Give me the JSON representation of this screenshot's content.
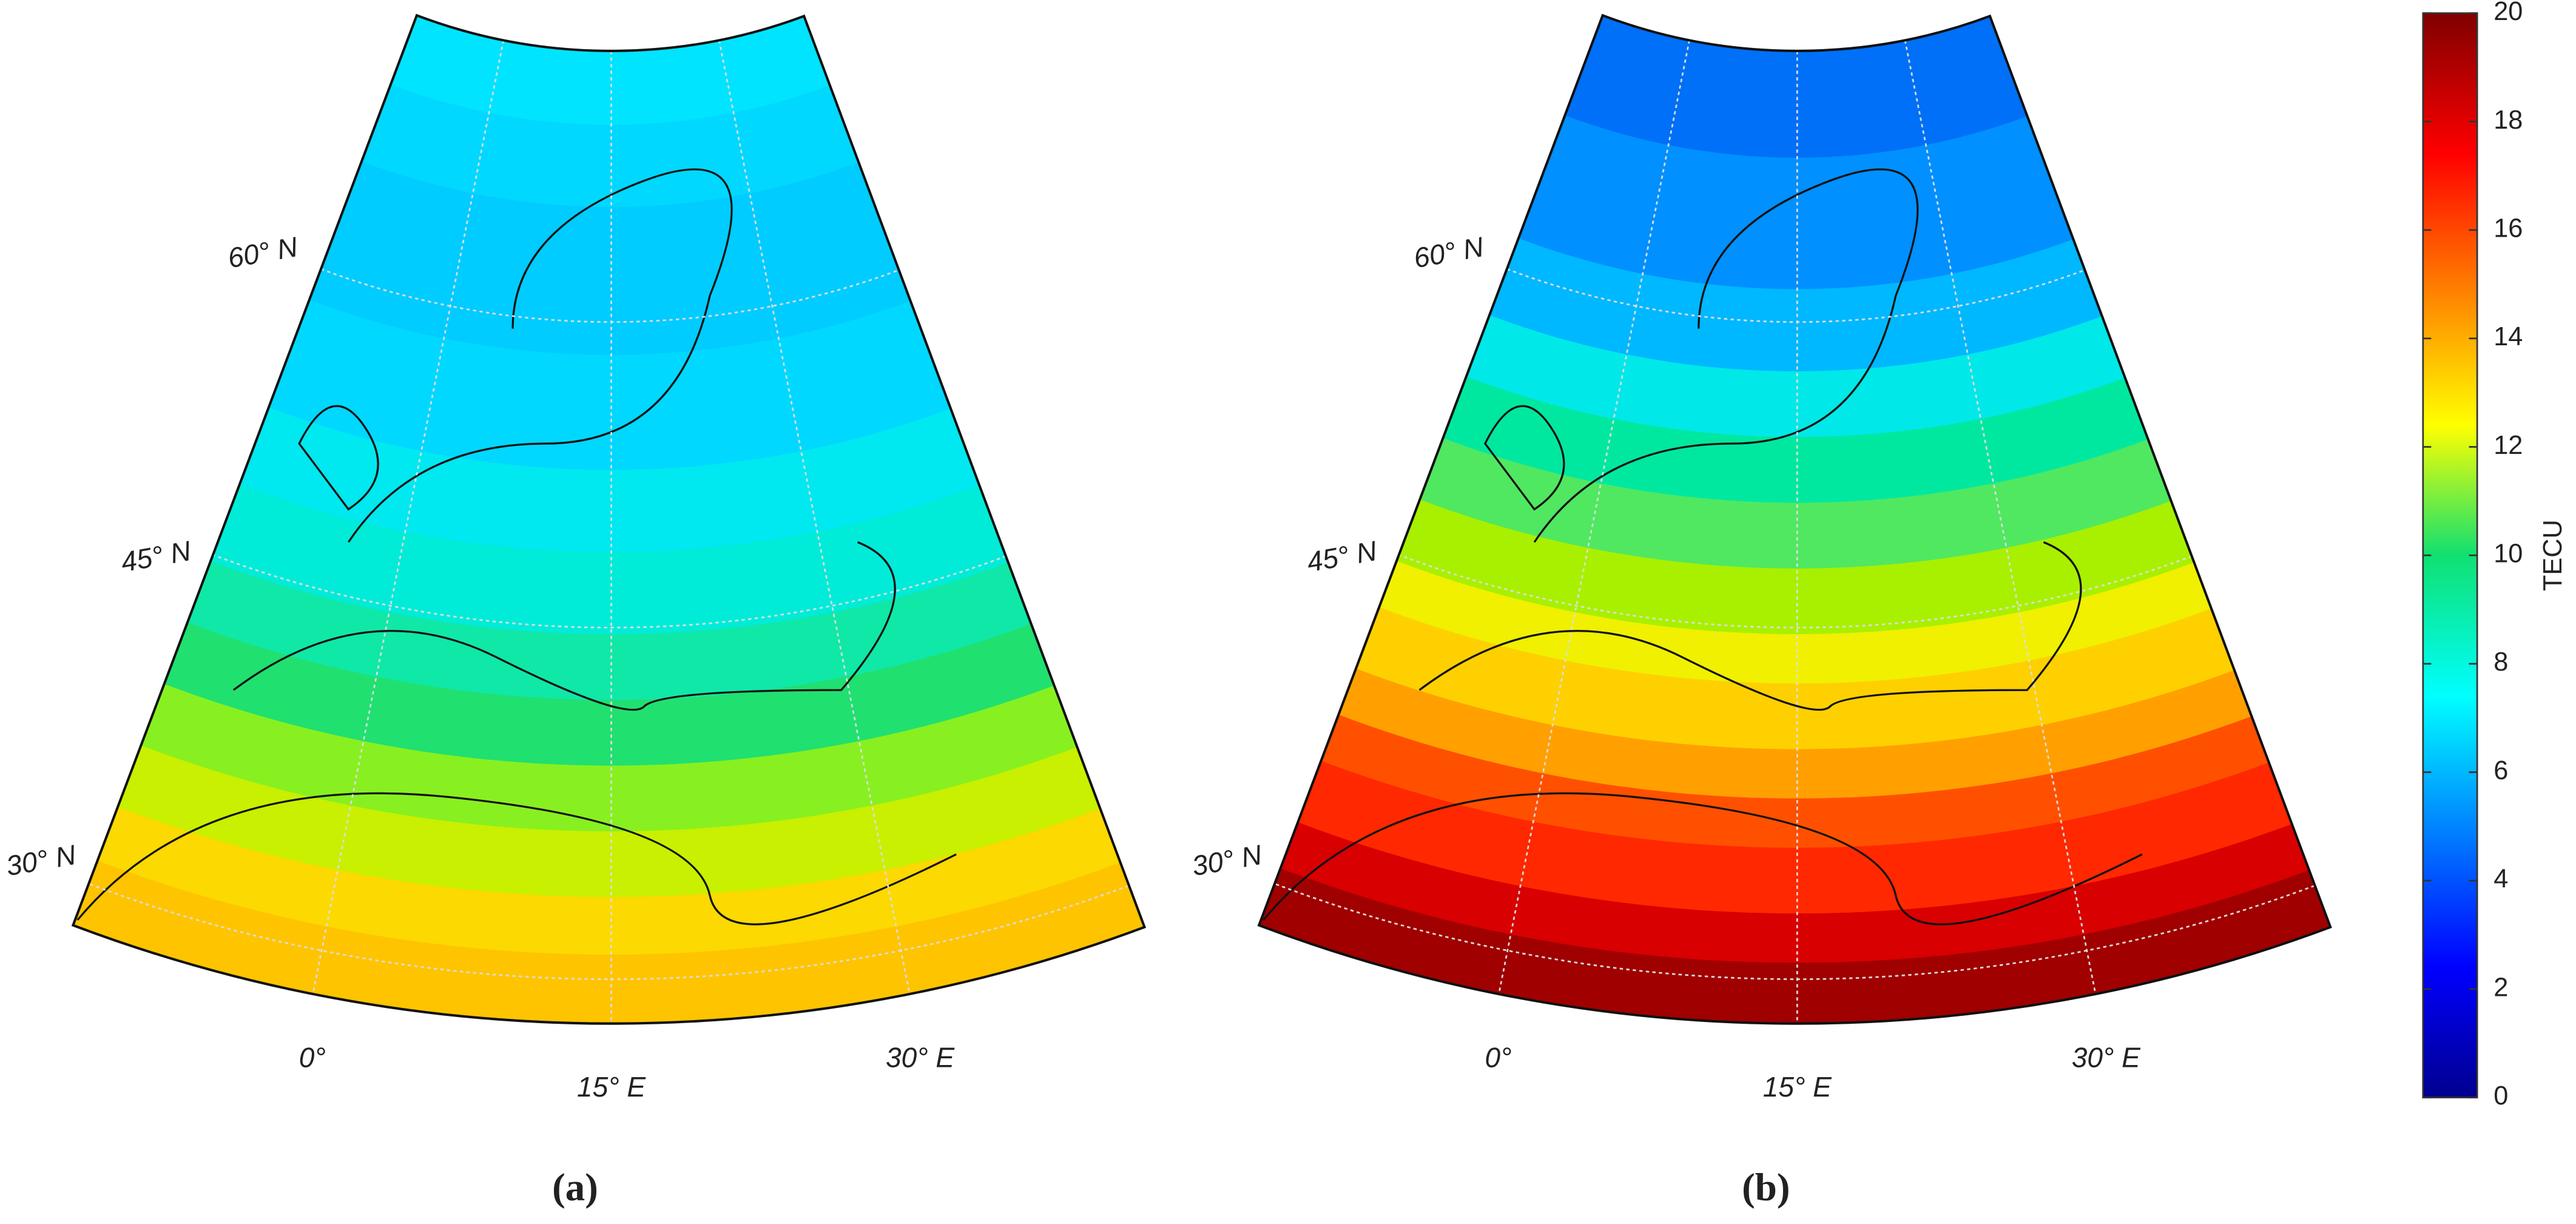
{
  "panels": [
    {
      "label": "(a)",
      "lat_labels": [
        "60° N",
        "45° N",
        "30° N"
      ],
      "lon_labels": [
        "0°",
        "15° E",
        "30° E"
      ]
    },
    {
      "label": "(b)",
      "lat_labels": [
        "60° N",
        "45° N",
        "30° N"
      ],
      "lon_labels": [
        "0°",
        "15° E",
        "30° E"
      ]
    }
  ],
  "colorbar": {
    "label": "TECU",
    "ylim": [
      0,
      20
    ],
    "yticks": [
      0,
      2,
      4,
      6,
      8,
      10,
      12,
      14,
      16,
      18,
      20
    ]
  }
}
